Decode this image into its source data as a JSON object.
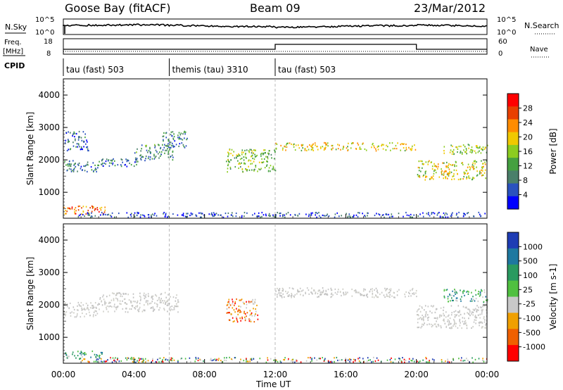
{
  "header": {
    "station": "Goose Bay (fitACF)",
    "beam": "Beam 09",
    "date": "23/Mar/2012"
  },
  "panel_labels": {
    "nsky": "N.Sky",
    "nsearch": "N.Search",
    "freq": "Freq.",
    "freq_unit": "[MHz]",
    "nave": "Nave",
    "cpid": "CPID"
  },
  "small_axes": {
    "noise_left_ticks": [
      "10^5",
      "10^0"
    ],
    "noise_right_ticks": [
      "10^5",
      "10^0"
    ],
    "freq_left_ticks": [
      "18",
      "8"
    ],
    "nave_right_ticks": [
      "60",
      "0"
    ]
  },
  "cpid_segments": [
    {
      "label": "tau (fast) 503",
      "start_hr": 0,
      "end_hr": 6
    },
    {
      "label": "themis (tau) 3310",
      "start_hr": 6,
      "end_hr": 12
    },
    {
      "label": "tau (fast) 503",
      "start_hr": 12,
      "end_hr": 24
    }
  ],
  "chart_data": [
    {
      "type": "heatmap",
      "title": "",
      "xlabel": "Time UT",
      "ylabel": "Slant Range [km]",
      "x_ticks": [
        "00:00",
        "04:00",
        "08:00",
        "12:00",
        "16:00",
        "20:00",
        "00:00"
      ],
      "x_range_hr": [
        0,
        24
      ],
      "y_ticks": [
        "1000",
        "2000",
        "3000",
        "4000"
      ],
      "ylim": [
        200,
        4500
      ],
      "colorbar": {
        "label": "Power [dB]",
        "ticks": [
          "4",
          "8",
          "12",
          "16",
          "20",
          "24",
          "28"
        ],
        "range": [
          0,
          30
        ],
        "colors": [
          "#0000ff",
          "#2a52be",
          "#4a7f6a",
          "#45a040",
          "#8ccc20",
          "#f0c800",
          "#ff8c00",
          "#e84000",
          "#ff0000"
        ]
      },
      "echo_regions": [
        {
          "t": [
            0.0,
            1.4
          ],
          "r": [
            2300,
            2900
          ],
          "value": 6
        },
        {
          "t": [
            0.0,
            2.0
          ],
          "r": [
            1650,
            2000
          ],
          "value": 8
        },
        {
          "t": [
            2.0,
            4.2
          ],
          "r": [
            1800,
            2050
          ],
          "value": 7
        },
        {
          "t": [
            4.0,
            6.2
          ],
          "r": [
            2000,
            2500
          ],
          "value": 9
        },
        {
          "t": [
            5.6,
            7.0
          ],
          "r": [
            2400,
            2900
          ],
          "value": 8
        },
        {
          "t": [
            9.2,
            12.0
          ],
          "r": [
            1650,
            2350
          ],
          "value": 14
        },
        {
          "t": [
            12.0,
            20.0
          ],
          "r": [
            2300,
            2550
          ],
          "value": 18
        },
        {
          "t": [
            20.0,
            24.0
          ],
          "r": [
            1400,
            2000
          ],
          "value": 17
        },
        {
          "t": [
            21.5,
            24.0
          ],
          "r": [
            2200,
            2500
          ],
          "value": 15
        },
        {
          "t": [
            0.0,
            2.4
          ],
          "r": [
            350,
            600
          ],
          "value": 22
        },
        {
          "t": [
            0.8,
            24.0
          ],
          "r": [
            250,
            400
          ],
          "value": 5
        }
      ]
    },
    {
      "type": "heatmap",
      "title": "",
      "xlabel": "Time UT",
      "ylabel": "Slant Range [km]",
      "x_ticks": [
        "00:00",
        "04:00",
        "08:00",
        "12:00",
        "16:00",
        "20:00",
        "00:00"
      ],
      "x_range_hr": [
        0,
        24
      ],
      "y_ticks": [
        "1000",
        "2000",
        "3000",
        "4000"
      ],
      "ylim": [
        200,
        4500
      ],
      "colorbar": {
        "label": "Velocity [m s-1]",
        "ticks": [
          "1000",
          "500",
          "100",
          "25",
          "-25",
          "-100",
          "-500",
          "-1000"
        ],
        "colors": [
          "#1e3cb4",
          "#1e78a0",
          "#2a9a60",
          "#50c040",
          "#c8c8c8",
          "#f0a000",
          "#f06000",
          "#ff0000"
        ]
      },
      "echo_regions": [
        {
          "t": [
            0.0,
            2.0
          ],
          "r": [
            1650,
            2100
          ],
          "value": "ground"
        },
        {
          "t": [
            2.0,
            6.5
          ],
          "r": [
            1800,
            2400
          ],
          "value": "ground"
        },
        {
          "t": [
            12.0,
            20.0
          ],
          "r": [
            2250,
            2550
          ],
          "value": "ground"
        },
        {
          "t": [
            20.0,
            24.0
          ],
          "r": [
            1300,
            2000
          ],
          "value": "ground"
        },
        {
          "t": [
            21.5,
            24.0
          ],
          "r": [
            2100,
            2500
          ],
          "value": "positive"
        },
        {
          "t": [
            9.2,
            11.0
          ],
          "r": [
            1500,
            2200
          ],
          "value": "negative"
        },
        {
          "t": [
            0.0,
            2.2
          ],
          "r": [
            350,
            600
          ],
          "value": "positive"
        },
        {
          "t": [
            1.0,
            24.0
          ],
          "r": [
            250,
            400
          ],
          "value": "mixed"
        }
      ]
    }
  ]
}
